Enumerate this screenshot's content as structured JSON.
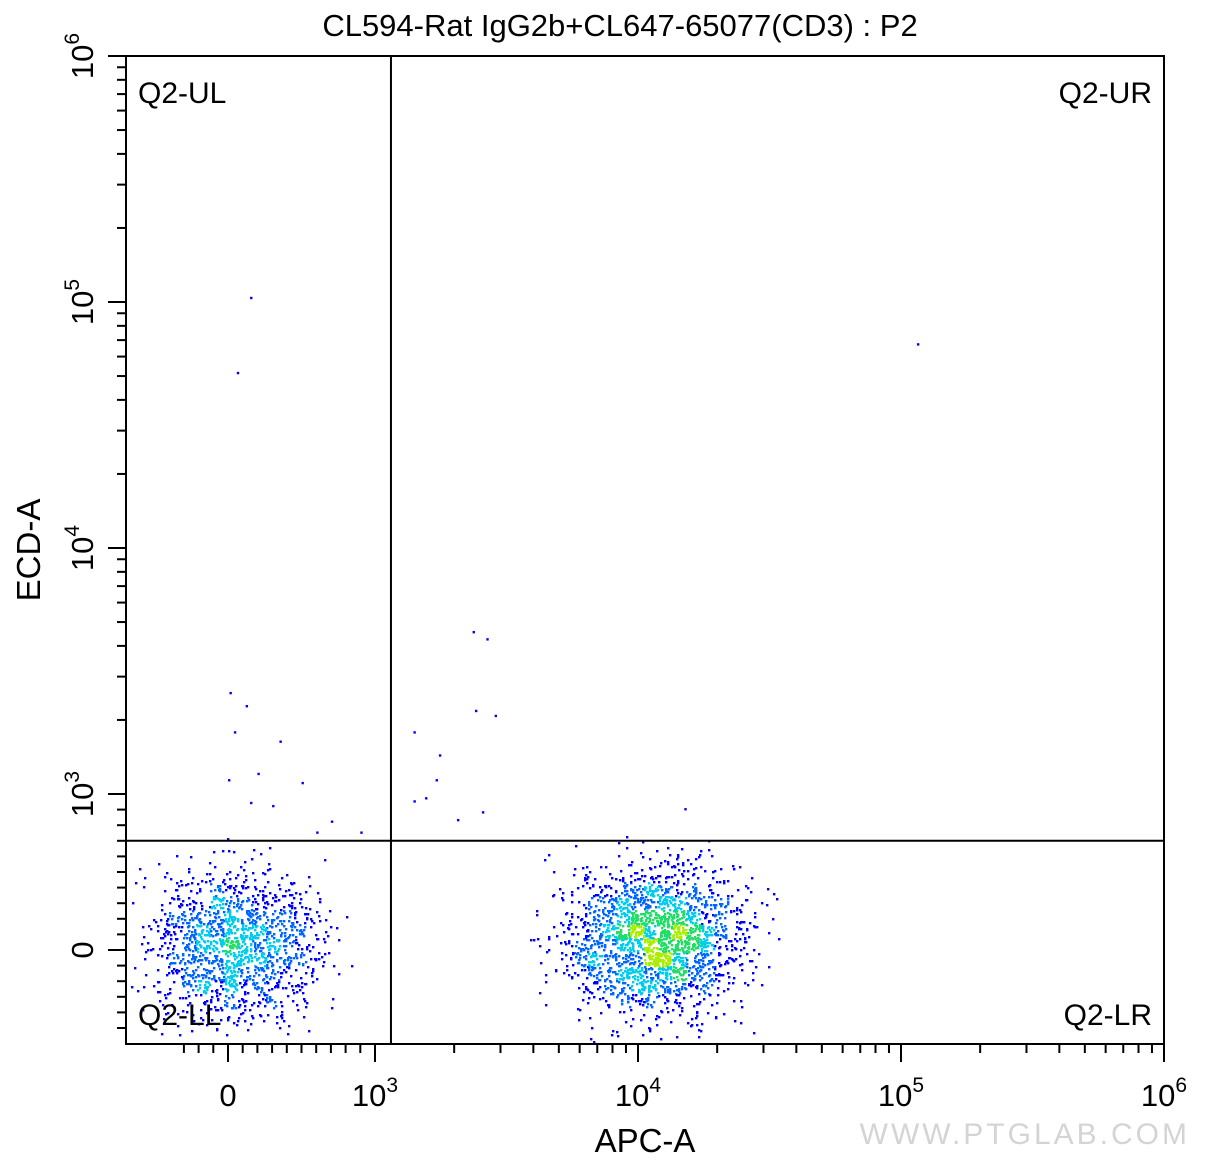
{
  "chart_data": {
    "type": "scatter",
    "title": "CL594-Rat IgG2b+CL647-65077(CD3) : P2",
    "xlabel": "APC-A",
    "ylabel": "ECD-A",
    "x_scale": "biexponential",
    "y_scale": "biexponential",
    "xlim": [
      -400,
      1000000
    ],
    "ylim": [
      -400,
      1000000
    ],
    "x_ticks": [
      {
        "value": 0,
        "base": "0",
        "exp": ""
      },
      {
        "value": 1000,
        "base": "10",
        "exp": "3"
      },
      {
        "value": 10000,
        "base": "10",
        "exp": "4"
      },
      {
        "value": 100000,
        "base": "10",
        "exp": "5"
      },
      {
        "value": 1000000,
        "base": "10",
        "exp": "6"
      }
    ],
    "y_ticks": [
      {
        "value": 0,
        "base": "0",
        "exp": ""
      },
      {
        "value": 1000,
        "base": "10",
        "exp": "3"
      },
      {
        "value": 10000,
        "base": "10",
        "exp": "4"
      },
      {
        "value": 100000,
        "base": "10",
        "exp": "5"
      },
      {
        "value": 1000000,
        "base": "10",
        "exp": "6"
      }
    ],
    "gate": {
      "x": 1150,
      "y": 700
    },
    "quadrants": {
      "ul": "Q2-UL",
      "ur": "Q2-UR",
      "ll": "Q2-LL",
      "lr": "Q2-LR"
    },
    "populations": [
      {
        "name": "",
        "center_x": 50,
        "center_y": 40,
        "count": 1500
      },
      {
        "name": "",
        "center_x": 11500,
        "center_y": 60,
        "count": 2200
      }
    ],
    "sparse_events": [
      {
        "x": 150,
        "y": 105000
      },
      {
        "x": 60,
        "y": 52000
      },
      {
        "x": 115000,
        "y": 68000
      },
      {
        "x": 2350,
        "y": 4600
      },
      {
        "x": 2650,
        "y": 4300
      },
      {
        "x": 10,
        "y": 2600
      },
      {
        "x": 120,
        "y": 2300
      },
      {
        "x": 2400,
        "y": 2200
      },
      {
        "x": 2850,
        "y": 2100
      },
      {
        "x": 40,
        "y": 1800
      },
      {
        "x": 1400,
        "y": 1800
      },
      {
        "x": 350,
        "y": 1650
      },
      {
        "x": 1750,
        "y": 1450
      },
      {
        "x": 1700,
        "y": 1150
      },
      {
        "x": 200,
        "y": 1220
      },
      {
        "x": 0,
        "y": 1150
      },
      {
        "x": 500,
        "y": 1120
      },
      {
        "x": 1550,
        "y": 980
      },
      {
        "x": 1400,
        "y": 960
      },
      {
        "x": 150,
        "y": 950
      },
      {
        "x": 300,
        "y": 930
      },
      {
        "x": 15000,
        "y": 910
      },
      {
        "x": 2550,
        "y": 890
      },
      {
        "x": 2050,
        "y": 840
      },
      {
        "x": 700,
        "y": 830
      },
      {
        "x": 600,
        "y": 760
      },
      {
        "x": 900,
        "y": 760
      }
    ],
    "colormap": [
      "#0000ff",
      "#0066ff",
      "#00ccee",
      "#22dd66",
      "#aaee00"
    ],
    "grid": false,
    "legend": "none"
  },
  "watermark": "WWW.PTGLAB.COM"
}
